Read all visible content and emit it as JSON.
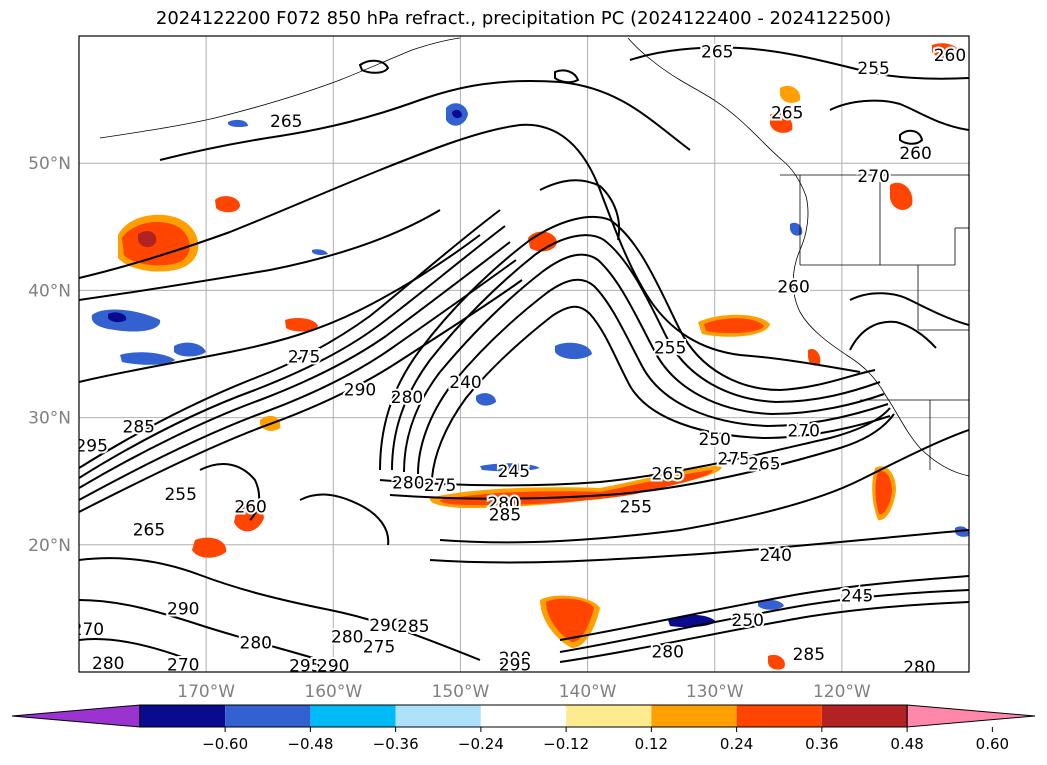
{
  "title": "2024122200 F072 850 hPa refract., precipitation PC (2024122400 - 2024122500)",
  "map": {
    "lon_range": [
      -180,
      -110
    ],
    "lat_range": [
      10,
      60
    ],
    "lon_ticks": [
      {
        "lon": -170,
        "label": "170°W"
      },
      {
        "lon": -160,
        "label": "160°W"
      },
      {
        "lon": -150,
        "label": "150°W"
      },
      {
        "lon": -140,
        "label": "140°W"
      },
      {
        "lon": -130,
        "label": "130°W"
      },
      {
        "lon": -120,
        "label": "120°W"
      }
    ],
    "lat_ticks": [
      {
        "lat": 20,
        "label": "20°N"
      },
      {
        "lat": 30,
        "label": "30°N"
      },
      {
        "lat": 40,
        "label": "40°N"
      },
      {
        "lat": 50,
        "label": "50°N"
      }
    ],
    "tick_color": "#808080",
    "contour_labels": [
      {
        "text": "265",
        "lon": -163.7,
        "lat": 53.3
      },
      {
        "text": "265",
        "lon": -129.8,
        "lat": 58.8
      },
      {
        "text": "255",
        "lon": -117.5,
        "lat": 57.5
      },
      {
        "text": "260",
        "lon": -111.5,
        "lat": 58.5
      },
      {
        "text": "265",
        "lon": -124.3,
        "lat": 54.0
      },
      {
        "text": "270",
        "lon": -117.5,
        "lat": 49.0
      },
      {
        "text": "260",
        "lon": -114.2,
        "lat": 50.8
      },
      {
        "text": "260",
        "lon": -123.8,
        "lat": 40.3
      },
      {
        "text": "255",
        "lon": -133.5,
        "lat": 35.5
      },
      {
        "text": "275",
        "lon": -162.3,
        "lat": 34.8
      },
      {
        "text": "290",
        "lon": -157.9,
        "lat": 32.2
      },
      {
        "text": "280",
        "lon": -154.2,
        "lat": 31.6
      },
      {
        "text": "240",
        "lon": -149.6,
        "lat": 32.8
      },
      {
        "text": "285",
        "lon": -175.3,
        "lat": 29.3
      },
      {
        "text": "295",
        "lon": -179.0,
        "lat": 27.8
      },
      {
        "text": "250",
        "lon": -130.0,
        "lat": 28.3
      },
      {
        "text": "270",
        "lon": -123.0,
        "lat": 29.0
      },
      {
        "text": "275",
        "lon": -128.5,
        "lat": 26.8
      },
      {
        "text": "265",
        "lon": -133.7,
        "lat": 25.6
      },
      {
        "text": "265",
        "lon": -126.1,
        "lat": 26.4
      },
      {
        "text": "245",
        "lon": -145.8,
        "lat": 25.8
      },
      {
        "text": "255",
        "lon": -136.2,
        "lat": 23.0
      },
      {
        "text": "280",
        "lon": -154.1,
        "lat": 24.9
      },
      {
        "text": "275",
        "lon": -151.6,
        "lat": 24.7
      },
      {
        "text": "280",
        "lon": -146.6,
        "lat": 23.3
      },
      {
        "text": "285",
        "lon": -146.5,
        "lat": 22.4
      },
      {
        "text": "260",
        "lon": -166.5,
        "lat": 23.0
      },
      {
        "text": "255",
        "lon": -172.0,
        "lat": 24.0
      },
      {
        "text": "265",
        "lon": -174.5,
        "lat": 21.2
      },
      {
        "text": "240",
        "lon": -125.2,
        "lat": 19.2
      },
      {
        "text": "290",
        "lon": -171.8,
        "lat": 15.0
      },
      {
        "text": "280",
        "lon": -166.1,
        "lat": 12.3
      },
      {
        "text": "280",
        "lon": -158.9,
        "lat": 12.8
      },
      {
        "text": "290",
        "lon": -155.9,
        "lat": 13.7
      },
      {
        "text": "285",
        "lon": -153.7,
        "lat": 13.6
      },
      {
        "text": "275",
        "lon": -156.4,
        "lat": 12.0
      },
      {
        "text": "245",
        "lon": -118.8,
        "lat": 16.0
      },
      {
        "text": "250",
        "lon": -127.4,
        "lat": 14.1
      },
      {
        "text": "280",
        "lon": -133.7,
        "lat": 11.6
      },
      {
        "text": "285",
        "lon": -122.6,
        "lat": 11.4
      },
      {
        "text": "290",
        "lon": -145.7,
        "lat": 11.1
      },
      {
        "text": "295",
        "lon": -145.7,
        "lat": 10.6
      },
      {
        "text": "295",
        "lon": -162.2,
        "lat": 10.5
      },
      {
        "text": "290",
        "lon": -160.0,
        "lat": 10.5
      },
      {
        "text": "280",
        "lon": -113.9,
        "lat": 10.4
      },
      {
        "text": "270",
        "lon": -179.3,
        "lat": 13.4
      },
      {
        "text": "280",
        "lon": -177.7,
        "lat": 10.7
      },
      {
        "text": "270",
        "lon": -171.8,
        "lat": 10.6
      }
    ]
  },
  "colorbar": {
    "colors": [
      "#9a33d0",
      "#0a0a8f",
      "#3461d0",
      "#00bbf5",
      "#aee2fa",
      "#ffffff",
      "#ffeb8f",
      "#ffa000",
      "#ff4500",
      "#b22222",
      "#ff88aa"
    ],
    "tick_labels": [
      "−0.60",
      "−0.48",
      "−0.36",
      "−0.24",
      "−0.12",
      "0.12",
      "0.24",
      "0.36",
      "0.48",
      "0.60"
    ]
  }
}
